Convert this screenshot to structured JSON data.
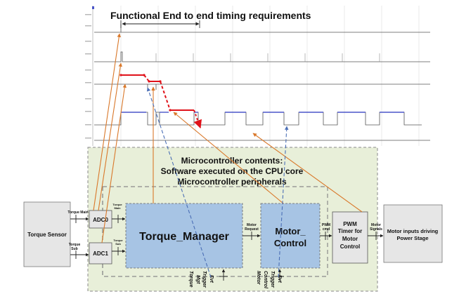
{
  "title": "Functional End to end timing requirements",
  "micro": {
    "line1": "Microcontroller contents:",
    "line2": "Software executed on the CPU core",
    "line3": "Microcontroller peripherals"
  },
  "blocks": {
    "torque_sensor": "Torque Sensor",
    "adc0": "ADC0",
    "adc1": "ADC1",
    "torque_manager": "Torque_Manager",
    "motor_control_1": "Motor_",
    "motor_control_2": "Control",
    "pwm_1": "PWM",
    "pwm_2": "Timer for",
    "pwm_3": "Motor",
    "pwm_4": "Control",
    "motor_inputs_1": "Motor inputs driving",
    "motor_inputs_2": "Power Stage"
  },
  "signals": {
    "torque_main": "Torque Main",
    "torque_sub_1": "Torque",
    "torque_sub_2": "Sub",
    "motor_request_1": "Motor",
    "motor_request_2": "Request",
    "pwm_cmd_1": "PWM",
    "pwm_cmd_2": "cmd",
    "motor_signals_1": "Motor",
    "motor_signals_2": "Signals",
    "torque_main_small_1": "Torque",
    "torque_main_small_2": "Main",
    "torque_sub_small_1": "Torque",
    "torque_sub_small_2": "Sub",
    "tm_trigger_1": "Torque",
    "tm_trigger_2": "Mgt",
    "tm_trigger_3": "Trigger",
    "tm_trigger_4": "Evt",
    "mc_trigger_1": "Motor",
    "mc_trigger_2": "Control",
    "mc_trigger_3": "Trigger",
    "mc_trigger_4": "Evt"
  },
  "colors": {
    "micro_bg": "#e8efd9",
    "block_blue": "#a7c4e4",
    "block_gray": "#e6e6e6",
    "arrow_orange": "#d9782a",
    "arrow_blue": "#4b6fb6",
    "timing_red": "#e0121a",
    "pwm_blue": "#4a55c8"
  }
}
